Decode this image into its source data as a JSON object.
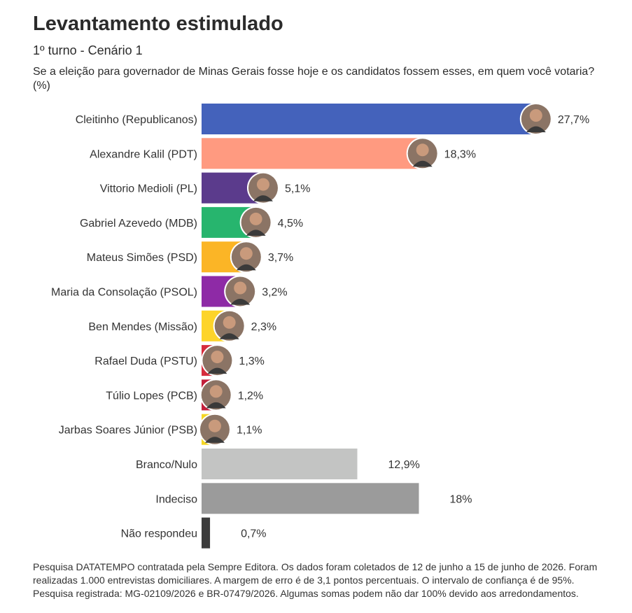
{
  "header": {
    "title": "Levantamento estimulado",
    "subtitle": "1º turno - Cenário 1",
    "question": "Se a eleição para governador de Minas Gerais fosse hoje e os candidatos fossem esses, em quem você votaria? (%)"
  },
  "chart_data": {
    "type": "bar",
    "orientation": "horizontal",
    "xlim": [
      0,
      30
    ],
    "categories": [
      "Cleitinho (Republicanos)",
      "Alexandre Kalil (PDT)",
      "Vittorio Medioli (PL)",
      "Gabriel Azevedo (MDB)",
      "Mateus Simões (PSD)",
      "Maria da Consolação (PSOL)",
      "Ben Mendes (Missão)",
      "Rafael Duda (PSTU)",
      "Túlio Lopes (PCB)",
      "Jarbas Soares Júnior (PSB)",
      "Branco/Nulo",
      "Indeciso",
      "Não respondeu"
    ],
    "values": [
      27.7,
      18.3,
      5.1,
      4.5,
      3.7,
      3.2,
      2.3,
      1.3,
      1.2,
      1.1,
      12.9,
      18,
      0.7
    ],
    "value_labels": [
      "27,7%",
      "18,3%",
      "5,1%",
      "4,5%",
      "3,7%",
      "3,2%",
      "2,3%",
      "1,3%",
      "1,2%",
      "1,1%",
      "12,9%",
      "18%",
      "0,7%"
    ],
    "colors": [
      "#4462bb",
      "#ff9a80",
      "#5b3b8c",
      "#27b56e",
      "#fbb526",
      "#8e2aa6",
      "#fdd42a",
      "#d62c3c",
      "#c21f3a",
      "#f6d723",
      "#c3c4c3",
      "#9b9b9b",
      "#3c3c3c"
    ],
    "has_photo": [
      true,
      true,
      true,
      true,
      true,
      true,
      true,
      true,
      true,
      true,
      false,
      false,
      false
    ],
    "grid": false,
    "legend": "none"
  },
  "footnote": "Pesquisa DATATEMPO contratada pela Sempre Editora. Os dados foram coletados de 12 de junho a 15 de junho de 2026. Foram realizadas 1.000 entrevistas domiciliares. A margem de erro é de 3,1 pontos percentuais. O intervalo de confiança é de 95%. Pesquisa registrada: MG-02109/2026 e BR-07479/2026. Algumas somas podem não dar 100% devido aos arredondamentos."
}
